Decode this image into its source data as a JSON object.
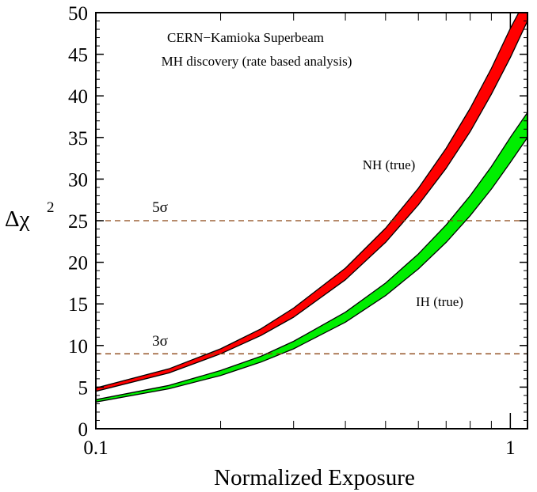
{
  "chart_data": {
    "type": "area",
    "title": "CERN−Kamioka Superbeam",
    "subtitle": "MH discovery (rate based analysis)",
    "xlabel": "Normalized Exposure",
    "ylabel": "Δχ²",
    "ylabel_main": "Δχ",
    "ylabel_sup": "2",
    "xscale": "log",
    "xlim": [
      0.1,
      1.1
    ],
    "ylim": [
      0,
      50
    ],
    "x_ticks": [
      0.1,
      1
    ],
    "x_tick_labels": [
      "0.1",
      "1"
    ],
    "y_ticks": [
      0,
      5,
      10,
      15,
      20,
      25,
      30,
      35,
      40,
      45,
      50
    ],
    "y_tick_labels": [
      "0",
      "5",
      "10",
      "15",
      "20",
      "25",
      "30",
      "35",
      "40",
      "45",
      "50"
    ],
    "grid": false,
    "series": [
      {
        "name": "NH (true)",
        "color": "#ff0000",
        "x": [
          0.1,
          0.15,
          0.2,
          0.25,
          0.3,
          0.4,
          0.5,
          0.6,
          0.7,
          0.8,
          0.9,
          1.0,
          1.1
        ],
        "lower": [
          4.5,
          6.7,
          9.0,
          11.2,
          13.4,
          17.9,
          22.4,
          26.9,
          31.3,
          35.7,
          40.2,
          44.6,
          49.0
        ],
        "upper": [
          4.9,
          7.2,
          9.6,
          12.0,
          14.5,
          19.3,
          24.1,
          28.9,
          33.7,
          38.5,
          43.3,
          48.1,
          52.0
        ]
      },
      {
        "name": "IH (true)",
        "color": "#00ee00",
        "x": [
          0.1,
          0.15,
          0.2,
          0.25,
          0.3,
          0.4,
          0.5,
          0.6,
          0.7,
          0.8,
          0.9,
          1.0,
          1.1
        ],
        "lower": [
          3.2,
          4.8,
          6.4,
          8.0,
          9.6,
          12.8,
          16.0,
          19.2,
          22.4,
          25.6,
          28.8,
          32.0,
          35.0
        ],
        "upper": [
          3.5,
          5.2,
          7.0,
          8.7,
          10.5,
          14.0,
          17.5,
          21.0,
          24.5,
          28.0,
          31.5,
          35.0,
          38.0
        ]
      }
    ],
    "reference_lines": [
      {
        "y": 25,
        "label": "5σ",
        "color": "#8b4513",
        "style": "dashed"
      },
      {
        "y": 9,
        "label": "3σ",
        "color": "#8b4513",
        "style": "dashed"
      }
    ],
    "annotations": [
      "NH (true)",
      "IH (true)"
    ]
  }
}
